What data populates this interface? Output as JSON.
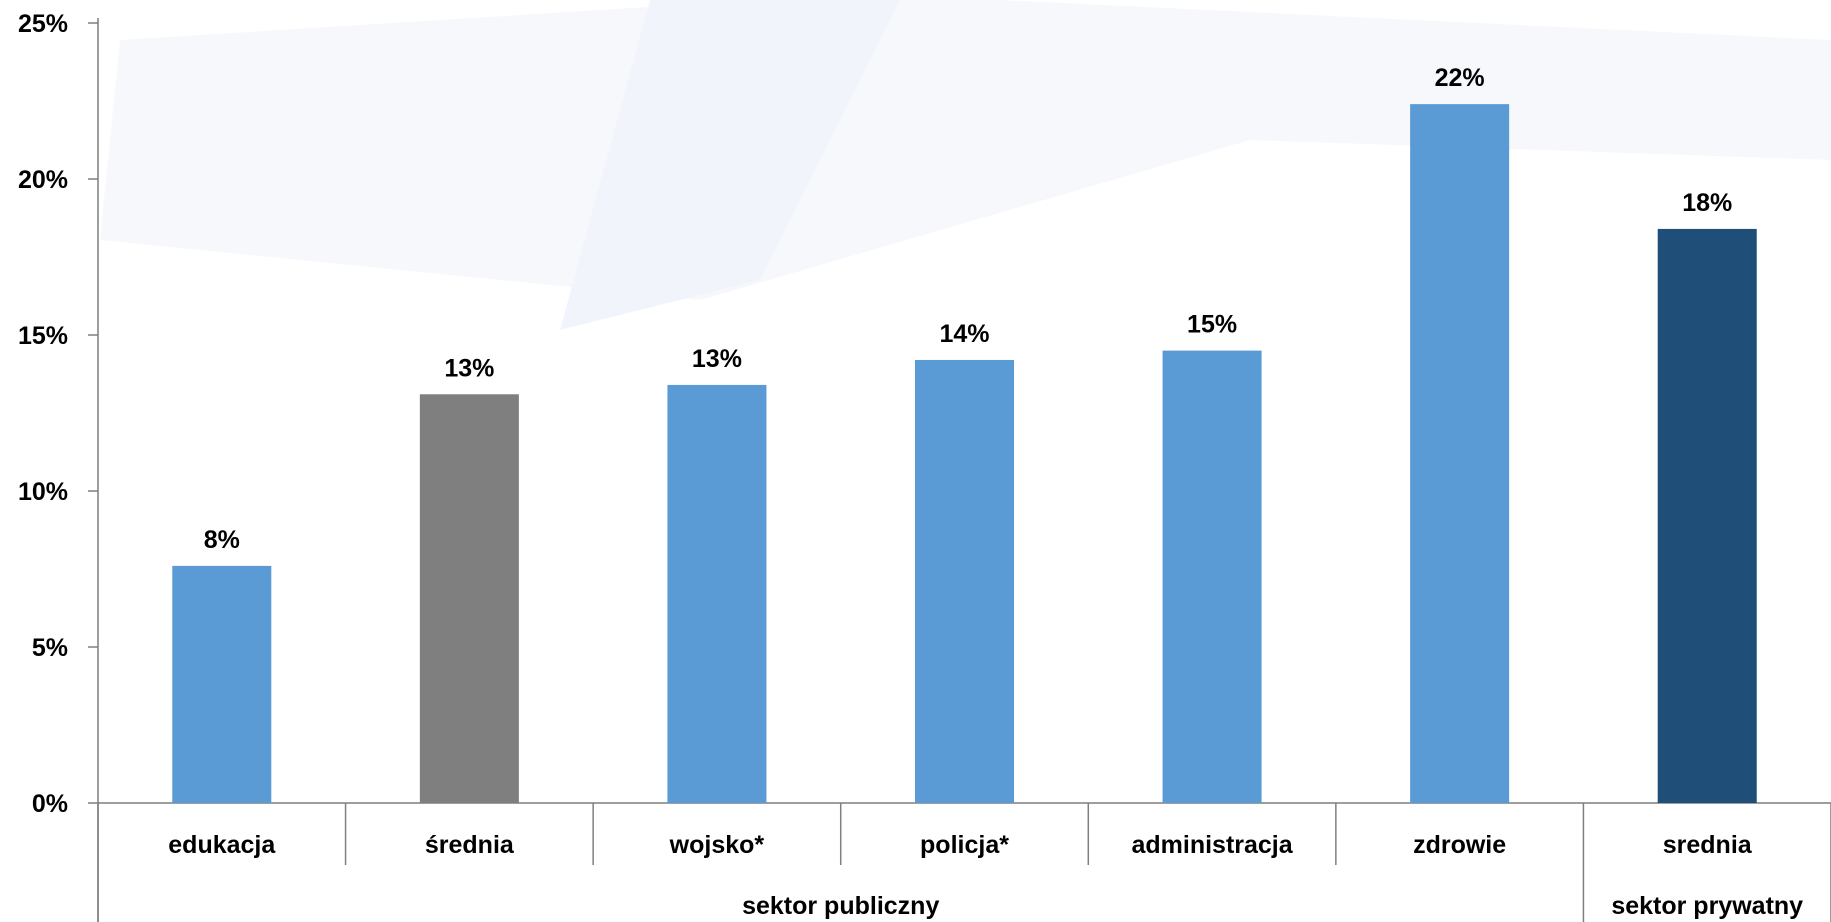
{
  "chart_data": {
    "type": "bar",
    "categories": [
      "edukacja",
      "średnia",
      "wojsko*",
      "policja*",
      "administracja",
      "zdrowie",
      "srednia"
    ],
    "values": [
      7.6,
      13.1,
      13.4,
      14.2,
      14.5,
      22.4,
      18.4
    ],
    "data_labels": [
      "8%",
      "13%",
      "13%",
      "14%",
      "15%",
      "22%",
      "18%"
    ],
    "bar_colors": [
      "#5b9bd5",
      "#7f7f7f",
      "#5b9bd5",
      "#5b9bd5",
      "#5b9bd5",
      "#5b9bd5",
      "#1f4e79"
    ],
    "groups": [
      {
        "label": "sektor publiczny",
        "span": 6
      },
      {
        "label": "sektor prywatny",
        "span": 1
      }
    ],
    "y_ticks": [
      "0%",
      "5%",
      "10%",
      "15%",
      "20%",
      "25%"
    ],
    "ylim": [
      0,
      25
    ],
    "grid": false,
    "legend": "none"
  }
}
